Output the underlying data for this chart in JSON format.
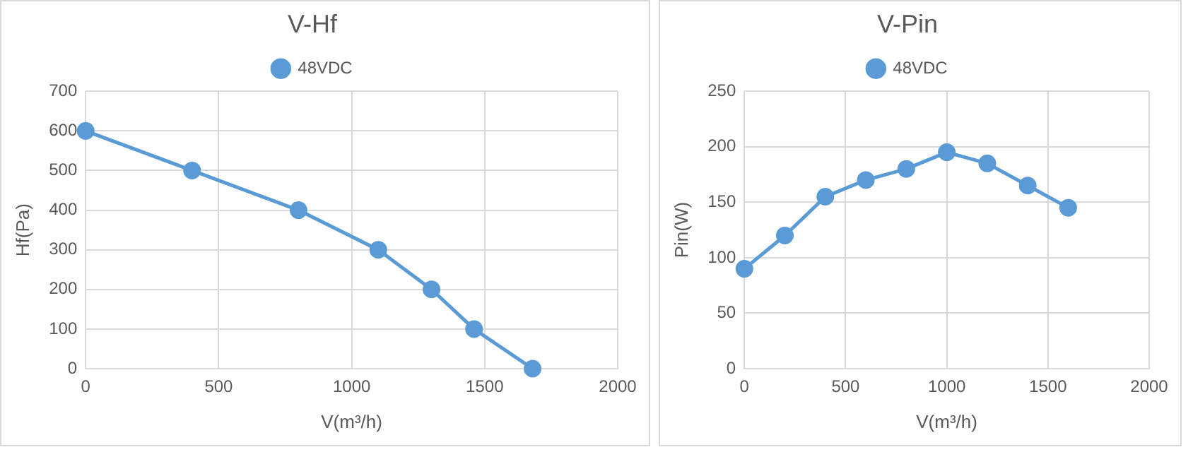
{
  "chart_data": [
    {
      "type": "line",
      "title": "V-Hf",
      "xlabel": "V(m³/h)",
      "ylabel": "Hf(Pa)",
      "x": [
        0,
        400,
        800,
        1100,
        1300,
        1460,
        1680
      ],
      "series": [
        {
          "name": "48VDC",
          "color": "#5b9bd5",
          "values": [
            600,
            500,
            400,
            300,
            200,
            100,
            0
          ]
        }
      ],
      "xlim": [
        0,
        2000
      ],
      "xticks": [
        0,
        500,
        1000,
        1500,
        2000
      ],
      "ylim": [
        0,
        700
      ],
      "yticks": [
        0,
        100,
        200,
        300,
        400,
        500,
        600,
        700
      ],
      "grid": true,
      "legend": "top",
      "marker": "circle",
      "line_style": "solid"
    },
    {
      "type": "line",
      "title": "V-Pin",
      "xlabel": "V(m³/h)",
      "ylabel": "Pin(W)",
      "x": [
        0,
        200,
        400,
        600,
        800,
        1000,
        1200,
        1400,
        1600
      ],
      "series": [
        {
          "name": "48VDC",
          "color": "#5b9bd5",
          "values": [
            90,
            120,
            155,
            170,
            180,
            195,
            185,
            165,
            145
          ]
        }
      ],
      "xlim": [
        0,
        2000
      ],
      "xticks": [
        0,
        500,
        1000,
        1500,
        2000
      ],
      "ylim": [
        0,
        250
      ],
      "yticks": [
        0,
        50,
        100,
        150,
        200,
        250
      ],
      "grid": true,
      "legend": "top",
      "marker": "circle",
      "line_style": "solid"
    }
  ]
}
